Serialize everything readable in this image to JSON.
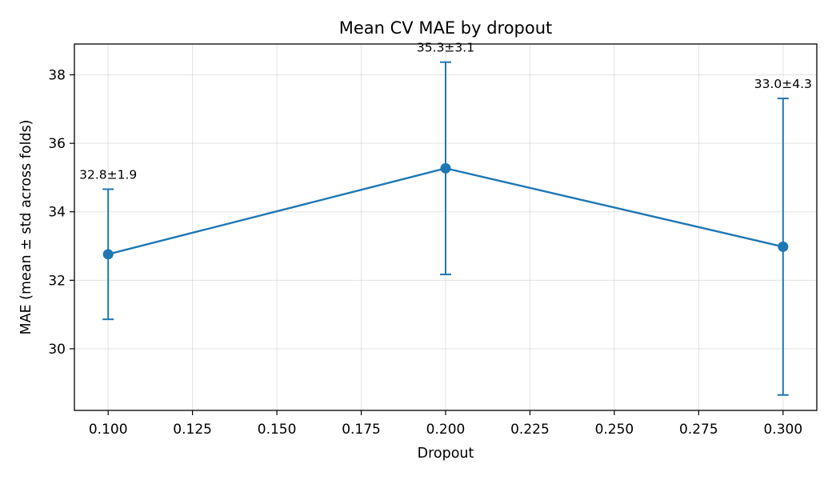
{
  "chart_data": {
    "type": "line",
    "title": "Mean CV MAE by dropout",
    "xlabel": "Dropout",
    "ylabel": "MAE (mean ± std across folds)",
    "xlim": [
      0.09,
      0.31
    ],
    "ylim": [
      28.2,
      38.9
    ],
    "xticks": [
      0.1,
      0.125,
      0.15,
      0.175,
      0.2,
      0.225,
      0.25,
      0.275,
      0.3
    ],
    "xtick_labels": [
      "0.100",
      "0.125",
      "0.150",
      "0.175",
      "0.200",
      "0.225",
      "0.250",
      "0.275",
      "0.300"
    ],
    "yticks": [
      30,
      32,
      34,
      36,
      38
    ],
    "ytick_labels": [
      "30",
      "32",
      "34",
      "36",
      "38"
    ],
    "grid": true,
    "series": [
      {
        "color": "#1f77b4",
        "points": [
          {
            "x": 0.1,
            "y": 32.76,
            "err": 1.9,
            "label": "32.8±1.9"
          },
          {
            "x": 0.2,
            "y": 35.27,
            "err": 3.1,
            "label": "35.3±3.1"
          },
          {
            "x": 0.3,
            "y": 32.98,
            "err": 4.33,
            "label": "33.0±4.3"
          }
        ]
      }
    ]
  }
}
